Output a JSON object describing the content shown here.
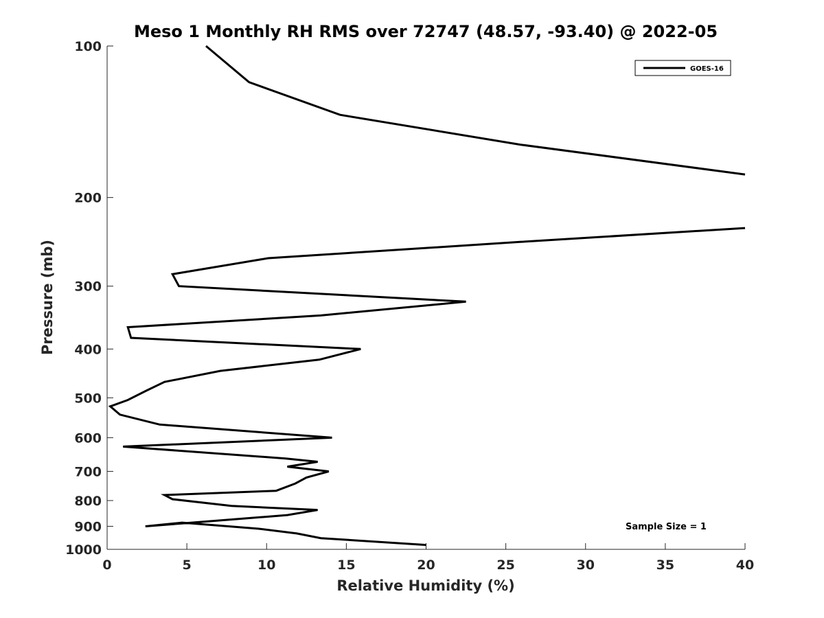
{
  "chart_data": {
    "type": "line",
    "title": "Meso 1 Monthly RH RMS over 72747 (48.57, -93.40) @ 2022-05",
    "xlabel": "Relative Humidity (%)",
    "ylabel": "Pressure (mb)",
    "xlim": [
      0,
      40
    ],
    "ylim": [
      100,
      1000
    ],
    "y_scale": "log",
    "y_direction": "reversed",
    "xticks": [
      0,
      5,
      10,
      15,
      20,
      25,
      30,
      35,
      40
    ],
    "yticks": [
      100,
      200,
      300,
      400,
      500,
      600,
      700,
      800,
      900,
      1000
    ],
    "grid": false,
    "legend_position": "top-right",
    "series": [
      {
        "name": "GOES-16",
        "color": "#000000",
        "x": [
          6.2,
          8.9,
          14.6,
          25.9,
          40.0,
          null,
          40.0,
          25.9,
          10.1,
          4.1,
          4.5,
          22.5,
          13.4,
          1.3,
          1.5,
          15.9,
          13.3,
          7.1,
          3.6,
          2.4,
          1.3,
          0.2,
          0.8,
          3.3,
          14.1,
          1.0,
          11.2,
          13.2,
          11.3,
          13.9,
          12.5,
          11.8,
          10.6,
          3.6,
          4.1,
          7.8,
          13.2,
          11.3,
          2.4,
          4.7,
          9.5,
          11.9,
          13.4,
          20.0
        ],
        "y": [
          100,
          118,
          137,
          157,
          180,
          null,
          230,
          245,
          264,
          284,
          300,
          322,
          343,
          362,
          380,
          400,
          420,
          442,
          465,
          485,
          505,
          520,
          540,
          565,
          600,
          625,
          660,
          670,
          685,
          700,
          720,
          740,
          765,
          780,
          795,
          820,
          835,
          855,
          900,
          885,
          910,
          930,
          950,
          980
        ]
      }
    ],
    "annotations": [
      "Sample Size = 1"
    ]
  }
}
